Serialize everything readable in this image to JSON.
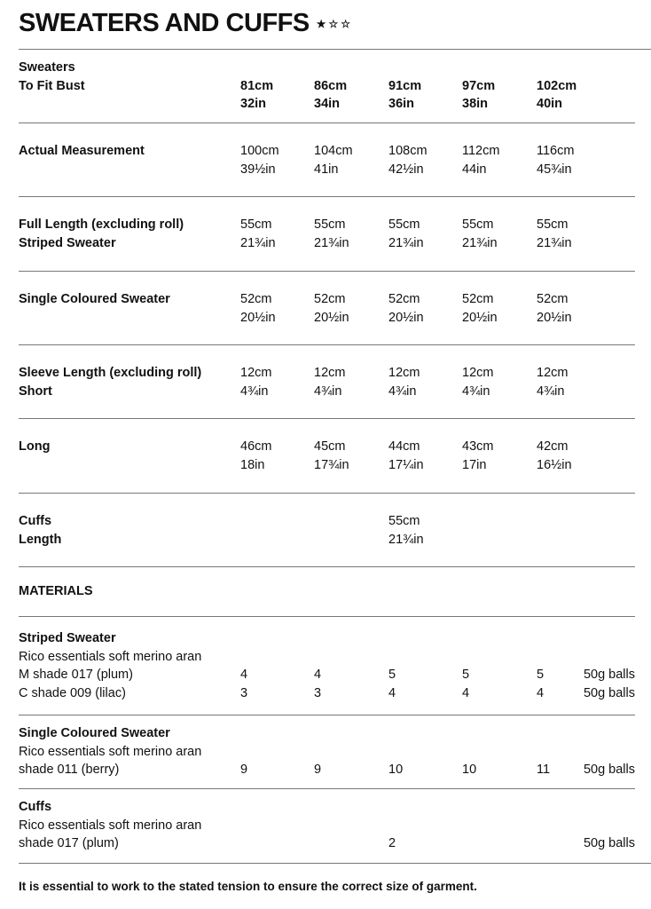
{
  "title": "SWEATERS AND CUFFS",
  "rating": {
    "filled": 1,
    "total": 3,
    "glyphs": "★☆☆"
  },
  "sizes": {
    "header": {
      "labels": [
        "Sweaters",
        "To Fit Bust"
      ],
      "cm": [
        "81cm",
        "86cm",
        "91cm",
        "97cm",
        "102cm"
      ],
      "in": [
        "32in",
        "34in",
        "36in",
        "38in",
        "40in"
      ]
    },
    "rows": [
      {
        "labels": [
          "Actual Measurement"
        ],
        "cm": [
          "100cm",
          "104cm",
          "108cm",
          "112cm",
          "116cm"
        ],
        "in": [
          "39½in",
          "41in",
          "42½in",
          "44in",
          "45¾in"
        ]
      },
      {
        "labels": [
          "Full Length (excluding roll)",
          "Striped Sweater"
        ],
        "cm": [
          "55cm",
          "55cm",
          "55cm",
          "55cm",
          "55cm"
        ],
        "in": [
          "21¾in",
          "21¾in",
          "21¾in",
          "21¾in",
          "21¾in"
        ]
      },
      {
        "labels": [
          "Single Coloured Sweater"
        ],
        "cm": [
          "52cm",
          "52cm",
          "52cm",
          "52cm",
          "52cm"
        ],
        "in": [
          "20½in",
          "20½in",
          "20½in",
          "20½in",
          "20½in"
        ]
      },
      {
        "labels": [
          "Sleeve Length (excluding roll)",
          "Short"
        ],
        "cm": [
          "12cm",
          "12cm",
          "12cm",
          "12cm",
          "12cm"
        ],
        "in": [
          "4¾in",
          "4¾in",
          "4¾in",
          "4¾in",
          "4¾in"
        ]
      },
      {
        "labels": [
          "Long"
        ],
        "cm": [
          "46cm",
          "45cm",
          "44cm",
          "43cm",
          "42cm"
        ],
        "in": [
          "18in",
          "17¾in",
          "17¼in",
          "17in",
          "16½in"
        ]
      },
      {
        "labels": [
          "Cuffs",
          "Length"
        ],
        "cm": [
          null,
          null,
          "55cm",
          null,
          null
        ],
        "in": [
          null,
          null,
          "21¾in",
          null,
          null
        ]
      }
    ]
  },
  "materials": {
    "title": "MATERIALS",
    "groups": [
      {
        "title": "Striped Sweater",
        "yarn": "Rico essentials soft merino aran",
        "lines": [
          {
            "label": "M shade 017 (plum)",
            "counts": [
              "4",
              "4",
              "5",
              "5",
              "5"
            ],
            "unit": "50g balls"
          },
          {
            "label": "C shade 009 (lilac)",
            "counts": [
              "3",
              "3",
              "4",
              "4",
              "4"
            ],
            "unit": "50g balls"
          }
        ]
      },
      {
        "title": "Single Coloured Sweater",
        "yarn": "Rico essentials soft merino aran",
        "lines": [
          {
            "label": "shade 011 (berry)",
            "counts": [
              "9",
              "9",
              "10",
              "10",
              "11"
            ],
            "unit": "50g balls"
          }
        ]
      },
      {
        "title": "Cuffs",
        "yarn": "Rico essentials soft merino aran",
        "lines": [
          {
            "label": "shade 017 (plum)",
            "counts": [
              null,
              null,
              "2",
              null,
              null
            ],
            "unit": "50g balls"
          }
        ]
      }
    ]
  },
  "footer": "It is essential to work to the stated tension to ensure the correct size of garment."
}
